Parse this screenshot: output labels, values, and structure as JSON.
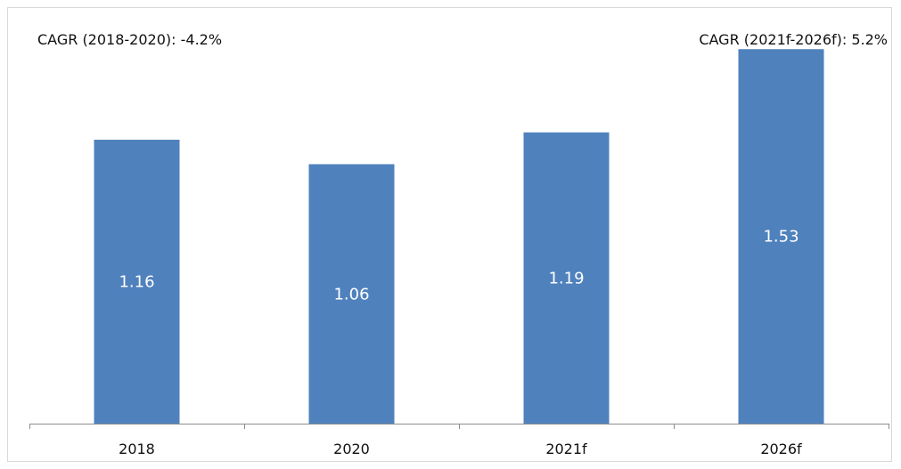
{
  "chart_data": {
    "type": "bar",
    "categories": [
      "2018",
      "2020",
      "2021f",
      "2026f"
    ],
    "values": [
      1.16,
      1.06,
      1.19,
      1.53
    ],
    "data_labels": [
      "1.16",
      "1.06",
      "1.19",
      "1.53"
    ],
    "ylim": [
      0,
      1.6
    ],
    "grid": false,
    "bar_color": "#4F81BD",
    "annotations": [
      {
        "text": "CAGR (2018-2020): -4.2%",
        "position": "top-left"
      },
      {
        "text": "CAGR (2021f-2026f): 5.2%",
        "position": "top-right"
      }
    ]
  }
}
